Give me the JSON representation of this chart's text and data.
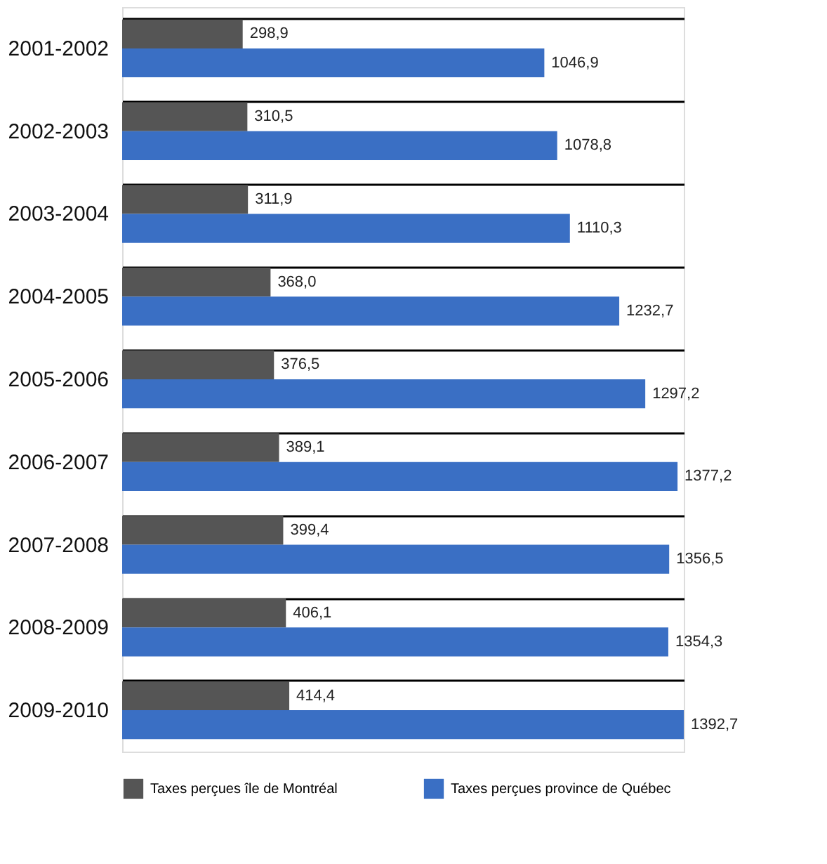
{
  "chart_data": {
    "type": "bar",
    "orientation": "horizontal",
    "grid": "y",
    "legend": "bottom left",
    "categories": [
      "2001-2002",
      "2002-2003",
      "2003-2004",
      "2004-2005",
      "2005-2006",
      "2006-2007",
      "2007-2008",
      "2008-2009",
      "2009-2010"
    ],
    "series": [
      {
        "name": "Taxes perçues île de Montréal",
        "color": "#555555",
        "values": [
          298.9,
          310.5,
          311.9,
          368.0,
          376.5,
          389.1,
          399.4,
          406.1,
          414.4
        ],
        "value_labels": [
          "298,9",
          "310,5",
          "311,9",
          "368,0",
          "376,5",
          "389,1",
          "399,4",
          "406,1",
          "414,4"
        ]
      },
      {
        "name": "Taxes perçues province de Québec",
        "color": "#3a6fc4",
        "values": [
          1046.9,
          1078.8,
          1110.3,
          1232.7,
          1297.2,
          1377.2,
          1356.5,
          1354.3,
          1392.7
        ],
        "value_labels": [
          "1046,9",
          "1078,8",
          "1110,3",
          "1232,7",
          "1297,2",
          "1377,2",
          "1356,5",
          "1354,3",
          "1392,7"
        ]
      }
    ]
  }
}
